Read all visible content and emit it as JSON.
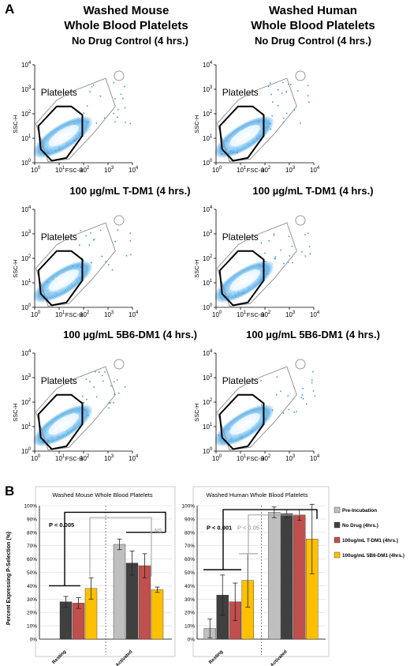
{
  "panel_a": {
    "letter": "A",
    "columns": [
      {
        "title_line1": "Washed Mouse",
        "title_line2": "Whole Blood Platelets"
      },
      {
        "title_line1": "Washed Human",
        "title_line2": "Whole Blood Platelets"
      }
    ],
    "plots": [
      {
        "title": "No Drug Control (4 hrs.)",
        "gate_label": "Platelets",
        "xlabel": "FSC-H",
        "ylabel": "SSC-H"
      },
      {
        "title": "No Drug Control (4 hrs.)",
        "gate_label": "Platelets",
        "xlabel": "FSC-H",
        "ylabel": "SSC-H"
      },
      {
        "title": "100 µg/mL T-DM1 (4 hrs.)",
        "gate_label": "Platelets",
        "xlabel": "FSC-H",
        "ylabel": "SSC-H"
      },
      {
        "title": "100 µg/mL T-DM1 (4 hrs.)",
        "gate_label": "Platelets",
        "xlabel": "FSC-H",
        "ylabel": "SSC-H"
      },
      {
        "title": "100 µg/mL 5B6-DM1 (4 hrs.)",
        "gate_label": "Platelets",
        "xlabel": "FSC-H",
        "ylabel": "SSC-H"
      },
      {
        "title": "100 µg/mL 5B6-DM1 (4 hrs.)",
        "gate_label": "Platelets",
        "xlabel": "FSC-H",
        "ylabel": "SSC-H"
      }
    ],
    "tick_labels": [
      "10",
      "10",
      "10",
      "10",
      "10"
    ],
    "tick_exponents": [
      "0",
      "1",
      "2",
      "3",
      "4"
    ]
  },
  "panel_b": {
    "letter": "B",
    "ylabel": "Percent Expressing P-Selection (%)",
    "yticks": [
      "0%",
      "10%",
      "20%",
      "30%",
      "40%",
      "50%",
      "60%",
      "70%",
      "80%",
      "90%",
      "100%"
    ],
    "colors": {
      "pre": "#bfbfbf",
      "nodrug": "#404040",
      "tdm1": "#c0504d",
      "b6dm1": "#ffc000"
    }
  },
  "chart_data": [
    {
      "type": "bar",
      "title": "Washed Mouse Whole Blood Platelets",
      "categories": [
        "Resting",
        "Activated"
      ],
      "ylim": [
        0,
        100
      ],
      "ylabel": "Percent Expressing P-Selection (%)",
      "series": [
        {
          "name": "Pre-Incubation",
          "values": [
            null,
            71
          ],
          "errors": [
            null,
            4
          ]
        },
        {
          "name": "No Drug (4hrs.)",
          "values": [
            28,
            57
          ],
          "errors": [
            4,
            9
          ]
        },
        {
          "name": "100ug/mL T-DM1 (4hrs.)",
          "values": [
            27,
            55
          ],
          "errors": [
            4,
            9
          ]
        },
        {
          "name": "100ug/mL 5B6-DM1 (4hrs.)",
          "values": [
            38,
            37
          ],
          "errors": [
            8,
            2
          ]
        }
      ],
      "annotations": [
        "P < 0.005",
        "NS"
      ]
    },
    {
      "type": "bar",
      "title": "Washed Human Whole Blood Platelets",
      "categories": [
        "Resting",
        "Activated"
      ],
      "ylim": [
        0,
        100
      ],
      "series": [
        {
          "name": "Pre-Incubation",
          "values": [
            8,
            95
          ],
          "errors": [
            7,
            4
          ]
        },
        {
          "name": "No Drug (4hrs.)",
          "values": [
            33,
            94
          ],
          "errors": [
            15,
            3
          ]
        },
        {
          "name": "100ug/mL T-DM1 (4hrs.)",
          "values": [
            28,
            93
          ],
          "errors": [
            14,
            4
          ]
        },
        {
          "name": "100ug/mL 5B6-DM1 (4hrs.)",
          "values": [
            44,
            75
          ],
          "errors": [
            20,
            26
          ]
        }
      ],
      "annotations": [
        "P < 0.001",
        "P < 0.05"
      ]
    }
  ]
}
